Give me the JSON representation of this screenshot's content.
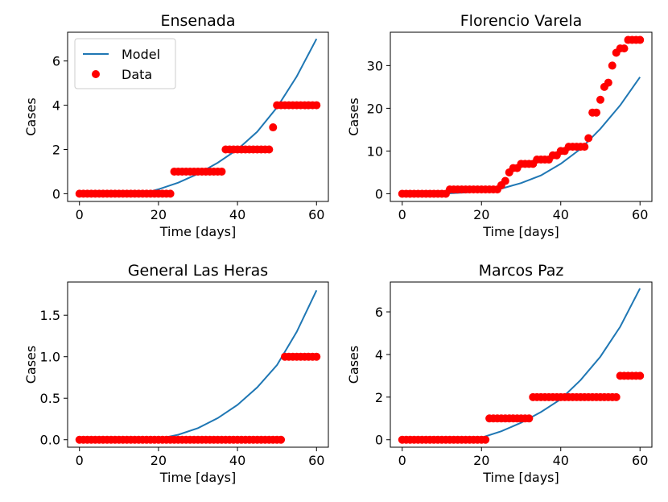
{
  "chart_data": [
    {
      "type": "line",
      "title": "Ensenada",
      "xlabel": "Time [days]",
      "ylabel": "Cases",
      "xlim": [
        -3,
        63
      ],
      "ylim": [
        -0.35,
        7.3
      ],
      "xticks": [
        0,
        20,
        40,
        60
      ],
      "yticks": [
        0,
        2,
        4,
        6
      ],
      "ytick_labels": [
        "0",
        "2",
        "4",
        "6"
      ],
      "legend": {
        "position": "top-left",
        "entries": [
          "Model",
          "Data"
        ]
      },
      "series": [
        {
          "name": "Model",
          "kind": "line",
          "color": "#1f77b4",
          "x": [
            0,
            10,
            16,
            20,
            25,
            30,
            35,
            40,
            45,
            50,
            55,
            60
          ],
          "y": [
            0,
            0,
            0,
            0.2,
            0.5,
            0.9,
            1.4,
            2.0,
            2.8,
            3.9,
            5.3,
            7.0
          ]
        },
        {
          "name": "Data",
          "kind": "scatter",
          "color": "#ff0000",
          "runs": [
            {
              "x_from": 0,
              "x_to": 23,
              "y": 0
            },
            {
              "x_from": 24,
              "x_to": 36,
              "y": 1
            },
            {
              "x_from": 37,
              "x_to": 48,
              "y": 2
            },
            {
              "x_from": 49,
              "x_to": 49,
              "y": 3
            },
            {
              "x_from": 50,
              "x_to": 60,
              "y": 4
            }
          ]
        }
      ]
    },
    {
      "type": "line",
      "title": "Florencio Varela",
      "xlabel": "Time [days]",
      "ylabel": "Cases",
      "xlim": [
        -3,
        63
      ],
      "ylim": [
        -1.8,
        37.8
      ],
      "xticks": [
        0,
        20,
        40,
        60
      ],
      "yticks": [
        0,
        10,
        20,
        30
      ],
      "ytick_labels": [
        "0",
        "10",
        "20",
        "30"
      ],
      "series": [
        {
          "name": "Model",
          "kind": "line",
          "color": "#1f77b4",
          "x": [
            0,
            10,
            20,
            25,
            30,
            35,
            40,
            45,
            50,
            55,
            60
          ],
          "y": [
            0,
            0,
            0.5,
            1.2,
            2.5,
            4.3,
            7.0,
            10.5,
            15.2,
            20.7,
            27.3
          ]
        },
        {
          "name": "Data",
          "kind": "scatter",
          "color": "#ff0000",
          "x": [
            0,
            1,
            2,
            3,
            4,
            5,
            6,
            7,
            8,
            9,
            10,
            11,
            12,
            13,
            14,
            15,
            16,
            17,
            18,
            19,
            20,
            21,
            22,
            23,
            24,
            25,
            26,
            27,
            28,
            29,
            30,
            31,
            32,
            33,
            34,
            35,
            36,
            37,
            38,
            39,
            40,
            41,
            42,
            43,
            44,
            45,
            46,
            47,
            48,
            49,
            50,
            51,
            52,
            53,
            54,
            55,
            56,
            57,
            58,
            59,
            60
          ],
          "y": [
            0,
            0,
            0,
            0,
            0,
            0,
            0,
            0,
            0,
            0,
            0,
            0,
            1,
            1,
            1,
            1,
            1,
            1,
            1,
            1,
            1,
            1,
            1,
            1,
            1,
            2,
            3,
            5,
            6,
            6,
            7,
            7,
            7,
            7,
            8,
            8,
            8,
            8,
            9,
            9,
            10,
            10,
            11,
            11,
            11,
            11,
            11,
            13,
            19,
            19,
            22,
            25,
            26,
            30,
            33,
            34,
            34,
            36,
            36,
            36,
            36
          ]
        }
      ]
    },
    {
      "type": "line",
      "title": "General Las Heras",
      "xlabel": "Time [days]",
      "ylabel": "Cases",
      "xlim": [
        -3,
        63
      ],
      "ylim": [
        -0.09,
        1.9
      ],
      "xticks": [
        0,
        20,
        40,
        60
      ],
      "yticks": [
        0.0,
        0.5,
        1.0,
        1.5
      ],
      "ytick_labels": [
        "0.0",
        "0.5",
        "1.0",
        "1.5"
      ],
      "series": [
        {
          "name": "Model",
          "kind": "line",
          "color": "#1f77b4",
          "x": [
            0,
            10,
            19,
            25,
            30,
            35,
            40,
            45,
            50,
            55,
            60
          ],
          "y": [
            0,
            0,
            0,
            0.06,
            0.14,
            0.26,
            0.42,
            0.63,
            0.9,
            1.3,
            1.8
          ]
        },
        {
          "name": "Data",
          "kind": "scatter",
          "color": "#ff0000",
          "runs": [
            {
              "x_from": 0,
              "x_to": 51,
              "y": 0
            },
            {
              "x_from": 52,
              "x_to": 60,
              "y": 1
            }
          ]
        }
      ]
    },
    {
      "type": "line",
      "title": "Marcos Paz",
      "xlabel": "Time [days]",
      "ylabel": "Cases",
      "xlim": [
        -3,
        63
      ],
      "ylim": [
        -0.35,
        7.4
      ],
      "xticks": [
        0,
        20,
        40,
        60
      ],
      "yticks": [
        0,
        2,
        4,
        6
      ],
      "ytick_labels": [
        "0",
        "2",
        "4",
        "6"
      ],
      "series": [
        {
          "name": "Model",
          "kind": "line",
          "color": "#1f77b4",
          "x": [
            0,
            10,
            20,
            25,
            30,
            35,
            40,
            45,
            50,
            55,
            60
          ],
          "y": [
            0,
            0,
            0.1,
            0.4,
            0.8,
            1.3,
            1.9,
            2.8,
            3.9,
            5.3,
            7.1
          ]
        },
        {
          "name": "Data",
          "kind": "scatter",
          "color": "#ff0000",
          "runs": [
            {
              "x_from": 0,
              "x_to": 21,
              "y": 0
            },
            {
              "x_from": 22,
              "x_to": 32,
              "y": 1
            },
            {
              "x_from": 33,
              "x_to": 54,
              "y": 2
            },
            {
              "x_from": 55,
              "x_to": 60,
              "y": 3
            }
          ]
        }
      ]
    }
  ]
}
